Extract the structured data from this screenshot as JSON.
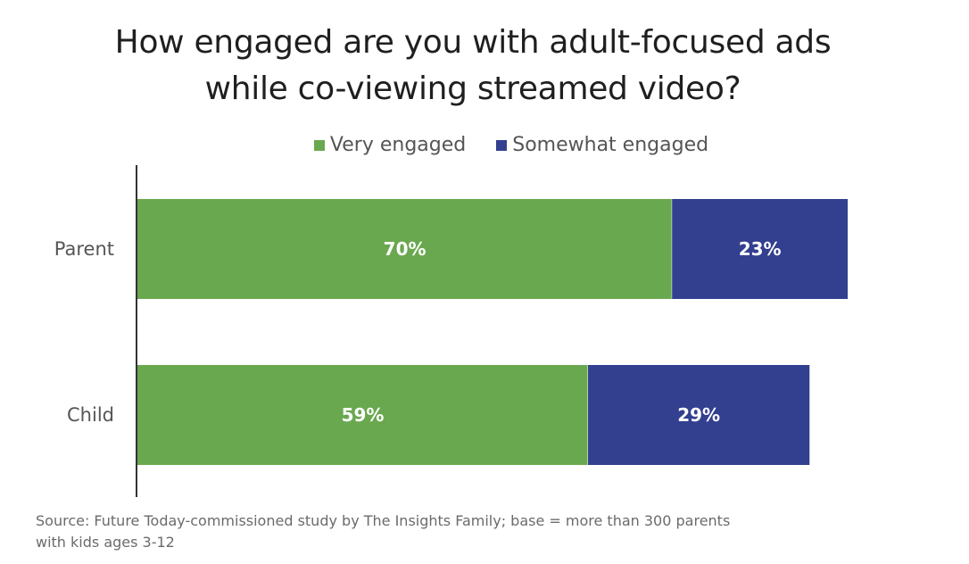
{
  "chart_data": {
    "type": "bar",
    "orientation": "horizontal",
    "stacked": true,
    "title_lines": [
      "How engaged are you with adult-focused ads",
      "while co-viewing streamed video?"
    ],
    "categories": [
      "Parent",
      "Child"
    ],
    "series": [
      {
        "name": "Very engaged",
        "values": [
          70,
          59
        ],
        "labels": [
          "70%",
          "59%"
        ],
        "color": "#6aa84f"
      },
      {
        "name": "Somewhat engaged",
        "values": [
          23,
          29
        ],
        "labels": [
          "23%",
          "29%"
        ],
        "color": "#333f8f"
      }
    ],
    "xlim": [
      0,
      100
    ],
    "legend_position": "top-center",
    "grid": false
  },
  "source": {
    "line1": "Source: Future Today-commissioned study by The Insights Family; base = more than 300 parents",
    "line2": "with kids ages 3-12"
  }
}
